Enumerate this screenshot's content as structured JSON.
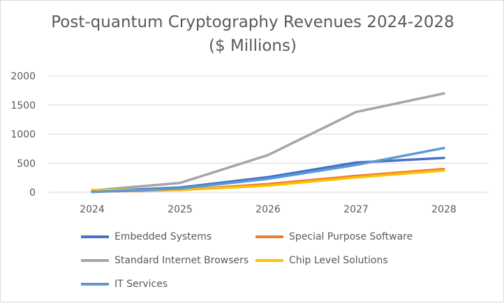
{
  "chart_data": {
    "type": "line",
    "title": "Post-quantum Cryptography Revenues 2024-2028",
    "subtitle": "($ Millions)",
    "x": [
      "2024",
      "2025",
      "2026",
      "2027",
      "2028"
    ],
    "ylim": [
      0,
      2000
    ],
    "yticks": [
      0,
      500,
      1000,
      1500,
      2000
    ],
    "grid": true,
    "legend_position": "bottom",
    "series": [
      {
        "name": "Embedded Systems",
        "color": "#4472C4",
        "values": [
          15,
          80,
          260,
          510,
          590
        ]
      },
      {
        "name": "Special Purpose Software",
        "color": "#ED7D31",
        "values": [
          10,
          40,
          140,
          280,
          400
        ]
      },
      {
        "name": "Standard Internet Browsers",
        "color": "#A5A5A5",
        "values": [
          30,
          160,
          640,
          1380,
          1700
        ]
      },
      {
        "name": "Chip Level Solutions",
        "color": "#FFC000",
        "values": [
          40,
          40,
          115,
          255,
          375
        ]
      },
      {
        "name": "IT Services",
        "color": "#5B9BD5",
        "values": [
          5,
          65,
          230,
          470,
          760
        ]
      }
    ]
  }
}
